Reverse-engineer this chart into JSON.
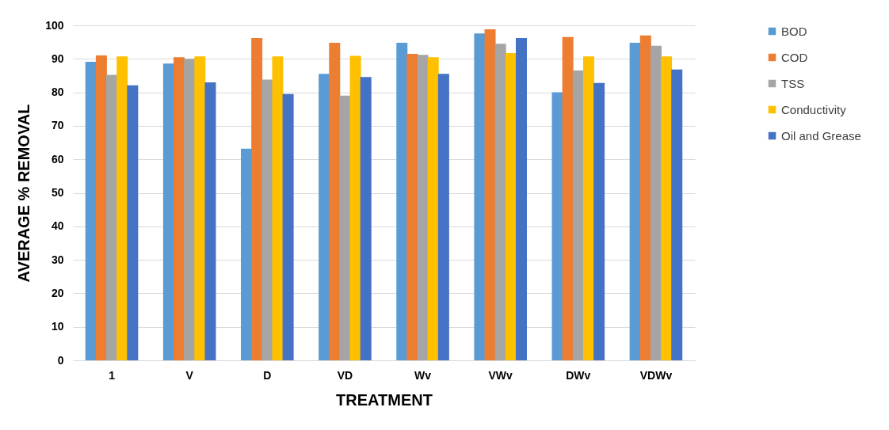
{
  "chart_data": {
    "type": "bar",
    "xlabel": "TREATMENT",
    "ylabel": "AVERAGE % REMOVAL",
    "categories": [
      "1",
      "V",
      "D",
      "VD",
      "Wv",
      "VWv",
      "DWv",
      "VDWv"
    ],
    "series": [
      {
        "name": "BOD",
        "color": "#5b9bd5",
        "values": [
          89.1,
          88.6,
          63.2,
          85.5,
          94.8,
          97.6,
          80,
          94.8
        ]
      },
      {
        "name": "COD",
        "color": "#ed7d31",
        "values": [
          91,
          90.5,
          96.2,
          94.8,
          91.5,
          98.8,
          96.5,
          97
        ]
      },
      {
        "name": "TSS",
        "color": "#a5a5a5",
        "values": [
          85.2,
          90,
          83.8,
          79,
          91.2,
          94.5,
          86.5,
          93.9
        ]
      },
      {
        "name": "Conductivity",
        "color": "#ffc000",
        "values": [
          90.7,
          90.7,
          90.7,
          90.9,
          90.5,
          91.7,
          90.7,
          90.7
        ]
      },
      {
        "name": "Oil and Grease",
        "color": "#4472c4",
        "values": [
          82.1,
          83,
          79.5,
          84.6,
          85.5,
          96.2,
          82.8,
          86.8
        ]
      }
    ],
    "ylim": [
      0,
      100
    ],
    "yticks": [
      0,
      10,
      20,
      30,
      40,
      50,
      60,
      70,
      80,
      90,
      100
    ],
    "grid": "y",
    "legend": "right"
  }
}
